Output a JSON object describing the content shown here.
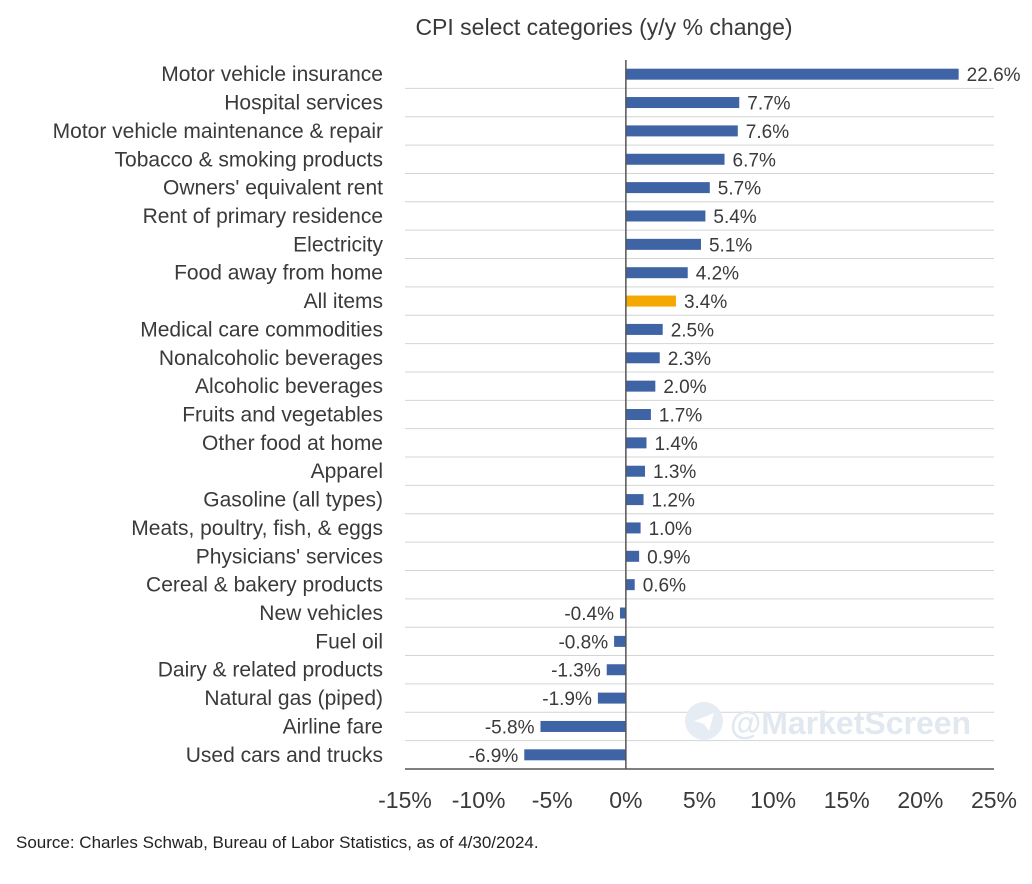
{
  "chart_data": {
    "type": "bar",
    "orientation": "horizontal",
    "title": "CPI select categories (y/y % change)",
    "categories": [
      "Motor vehicle insurance",
      "Hospital services",
      "Motor vehicle maintenance & repair",
      "Tobacco & smoking products",
      "Owners' equivalent rent",
      "Rent of primary residence",
      "Electricity",
      "Food away from home",
      "All items",
      "Medical care commodities",
      "Nonalcoholic beverages",
      "Alcoholic beverages",
      "Fruits and vegetables",
      "Other food at home",
      "Apparel",
      "Gasoline (all types)",
      "Meats, poultry, fish, & eggs",
      "Physicians' services",
      "Cereal & bakery products",
      "New vehicles",
      "Fuel oil",
      "Dairy & related products",
      "Natural gas (piped)",
      "Airline fare",
      "Used cars and trucks"
    ],
    "values": [
      22.6,
      7.7,
      7.6,
      6.7,
      5.7,
      5.4,
      5.1,
      4.2,
      3.4,
      2.5,
      2.3,
      2.0,
      1.7,
      1.4,
      1.3,
      1.2,
      1.0,
      0.9,
      0.6,
      -0.4,
      -0.8,
      -1.3,
      -1.9,
      -5.8,
      -6.9
    ],
    "value_labels": [
      "22.6%",
      "7.7%",
      "7.6%",
      "6.7%",
      "5.7%",
      "5.4%",
      "5.1%",
      "4.2%",
      "3.4%",
      "2.5%",
      "2.3%",
      "2.0%",
      "1.7%",
      "1.4%",
      "1.3%",
      "1.2%",
      "1.0%",
      "0.9%",
      "0.6%",
      "-0.4%",
      "-0.8%",
      "-1.3%",
      "-1.9%",
      "-5.8%",
      "-6.9%"
    ],
    "highlight_category": "All items",
    "xlim": [
      -15,
      25
    ],
    "x_ticks": [
      -15,
      -10,
      -5,
      0,
      5,
      10,
      15,
      20,
      25
    ],
    "x_tick_labels": [
      "-15%",
      "-10%",
      "-5%",
      "0%",
      "5%",
      "10%",
      "15%",
      "20%",
      "25%"
    ],
    "grid": "horizontal",
    "colors": {
      "bar": "#3f64a5",
      "highlight": "#f5a800",
      "grid": "#d4d4d4",
      "axis": "#555555"
    }
  },
  "watermark": "@MarketScreen",
  "source": "Source: Charles Schwab, Bureau of Labor Statistics, as of 4/30/2024."
}
